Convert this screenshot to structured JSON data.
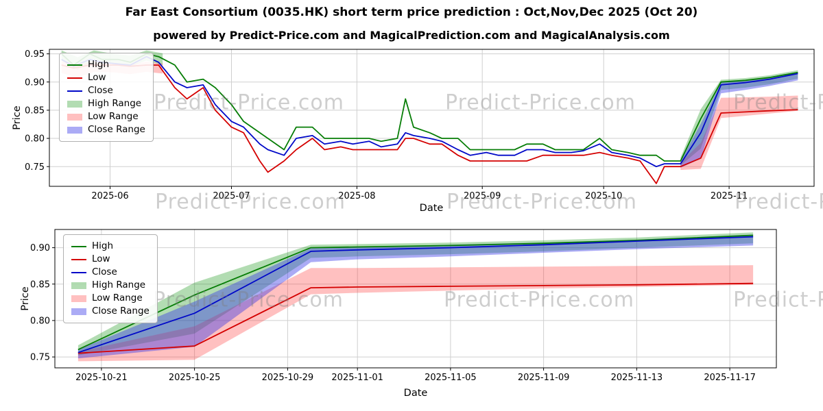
{
  "header": {
    "title": "Far East Consortium (0035.HK) short term price prediction : Oct,Nov,Dec 2025 (Oct 20)",
    "subtitle": "powered by Predict-Price.com and MagicalPrediction.com and MagicalAnalysis.com"
  },
  "watermark": {
    "text": "Predict-Price.com"
  },
  "chart_data": [
    {
      "type": "line",
      "title": "",
      "xlabel": "Date",
      "ylabel": "Price",
      "x_range": [
        "2025-05-17",
        "2025-11-22"
      ],
      "y_range": [
        0.715,
        0.958
      ],
      "y_ticks": [
        0.75,
        0.8,
        0.85,
        0.9,
        0.95
      ],
      "x_ticks": [
        {
          "v": "2025-06-01",
          "label": "2025-06"
        },
        {
          "v": "2025-07-01",
          "label": "2025-07"
        },
        {
          "v": "2025-08-01",
          "label": "2025-08"
        },
        {
          "v": "2025-09-01",
          "label": "2025-09"
        },
        {
          "v": "2025-10-01",
          "label": "2025-10"
        },
        {
          "v": "2025-11-01",
          "label": "2025-11"
        }
      ],
      "grid": true,
      "legend_position": "upper left",
      "series": [
        {
          "name": "High",
          "color": "#067d06",
          "x": [
            "2025-05-20",
            "2025-05-23",
            "2025-05-27",
            "2025-05-30",
            "2025-06-03",
            "2025-06-06",
            "2025-06-10",
            "2025-06-13",
            "2025-06-17",
            "2025-06-20",
            "2025-06-24",
            "2025-06-27",
            "2025-07-01",
            "2025-07-04",
            "2025-07-08",
            "2025-07-10",
            "2025-07-14",
            "2025-07-17",
            "2025-07-21",
            "2025-07-24",
            "2025-07-28",
            "2025-07-31",
            "2025-08-04",
            "2025-08-07",
            "2025-08-11",
            "2025-08-13",
            "2025-08-15",
            "2025-08-19",
            "2025-08-22",
            "2025-08-26",
            "2025-08-29",
            "2025-09-02",
            "2025-09-05",
            "2025-09-09",
            "2025-09-12",
            "2025-09-16",
            "2025-09-19",
            "2025-09-23",
            "2025-09-26",
            "2025-09-30",
            "2025-10-03",
            "2025-10-07",
            "2025-10-10",
            "2025-10-14",
            "2025-10-16",
            "2025-10-20",
            "2025-10-25",
            "2025-10-30",
            "2025-11-05",
            "2025-11-11",
            "2025-11-18"
          ],
          "y": [
            0.95,
            0.93,
            0.95,
            0.94,
            0.94,
            0.935,
            0.95,
            0.945,
            0.93,
            0.9,
            0.905,
            0.89,
            0.86,
            0.83,
            0.81,
            0.8,
            0.78,
            0.82,
            0.82,
            0.8,
            0.8,
            0.8,
            0.8,
            0.795,
            0.8,
            0.87,
            0.82,
            0.81,
            0.8,
            0.8,
            0.78,
            0.78,
            0.78,
            0.78,
            0.79,
            0.79,
            0.78,
            0.78,
            0.78,
            0.8,
            0.78,
            0.775,
            0.77,
            0.77,
            0.76,
            0.76,
            0.835,
            0.9,
            0.903,
            0.908,
            0.917
          ]
        },
        {
          "name": "Low",
          "color": "#d40000",
          "x": [
            "2025-05-20",
            "2025-05-23",
            "2025-05-27",
            "2025-05-30",
            "2025-06-03",
            "2025-06-06",
            "2025-06-10",
            "2025-06-13",
            "2025-06-17",
            "2025-06-20",
            "2025-06-24",
            "2025-06-27",
            "2025-07-01",
            "2025-07-04",
            "2025-07-08",
            "2025-07-10",
            "2025-07-14",
            "2025-07-17",
            "2025-07-21",
            "2025-07-24",
            "2025-07-28",
            "2025-07-31",
            "2025-08-04",
            "2025-08-07",
            "2025-08-11",
            "2025-08-13",
            "2025-08-15",
            "2025-08-19",
            "2025-08-22",
            "2025-08-26",
            "2025-08-29",
            "2025-09-02",
            "2025-09-05",
            "2025-09-09",
            "2025-09-12",
            "2025-09-16",
            "2025-09-19",
            "2025-09-23",
            "2025-09-26",
            "2025-09-30",
            "2025-10-03",
            "2025-10-07",
            "2025-10-10",
            "2025-10-14",
            "2025-10-16",
            "2025-10-20",
            "2025-10-25",
            "2025-10-30",
            "2025-11-05",
            "2025-11-11",
            "2025-11-18"
          ],
          "y": [
            0.93,
            0.925,
            0.93,
            0.93,
            0.93,
            0.928,
            0.93,
            0.93,
            0.89,
            0.87,
            0.89,
            0.85,
            0.82,
            0.81,
            0.76,
            0.74,
            0.76,
            0.78,
            0.8,
            0.78,
            0.785,
            0.78,
            0.78,
            0.78,
            0.78,
            0.8,
            0.8,
            0.79,
            0.79,
            0.77,
            0.76,
            0.76,
            0.76,
            0.76,
            0.76,
            0.77,
            0.77,
            0.77,
            0.77,
            0.775,
            0.77,
            0.765,
            0.76,
            0.72,
            0.75,
            0.75,
            0.765,
            0.845,
            0.847,
            0.849,
            0.851
          ]
        },
        {
          "name": "Close",
          "color": "#0008c8",
          "x": [
            "2025-05-20",
            "2025-05-23",
            "2025-05-27",
            "2025-05-30",
            "2025-06-03",
            "2025-06-06",
            "2025-06-10",
            "2025-06-13",
            "2025-06-17",
            "2025-06-20",
            "2025-06-24",
            "2025-06-27",
            "2025-07-01",
            "2025-07-04",
            "2025-07-08",
            "2025-07-10",
            "2025-07-14",
            "2025-07-17",
            "2025-07-21",
            "2025-07-24",
            "2025-07-28",
            "2025-07-31",
            "2025-08-04",
            "2025-08-07",
            "2025-08-11",
            "2025-08-13",
            "2025-08-15",
            "2025-08-19",
            "2025-08-22",
            "2025-08-26",
            "2025-08-29",
            "2025-09-02",
            "2025-09-05",
            "2025-09-09",
            "2025-09-12",
            "2025-09-16",
            "2025-09-19",
            "2025-09-23",
            "2025-09-26",
            "2025-09-30",
            "2025-10-03",
            "2025-10-07",
            "2025-10-10",
            "2025-10-14",
            "2025-10-16",
            "2025-10-20",
            "2025-10-25",
            "2025-10-30",
            "2025-11-05",
            "2025-11-11",
            "2025-11-18"
          ],
          "y": [
            0.94,
            0.928,
            0.94,
            0.935,
            0.932,
            0.93,
            0.945,
            0.935,
            0.9,
            0.89,
            0.895,
            0.86,
            0.83,
            0.82,
            0.79,
            0.78,
            0.77,
            0.8,
            0.805,
            0.79,
            0.795,
            0.79,
            0.795,
            0.785,
            0.79,
            0.81,
            0.805,
            0.8,
            0.795,
            0.78,
            0.77,
            0.775,
            0.77,
            0.77,
            0.78,
            0.78,
            0.775,
            0.775,
            0.778,
            0.79,
            0.775,
            0.77,
            0.765,
            0.75,
            0.755,
            0.755,
            0.81,
            0.895,
            0.899,
            0.905,
            0.915
          ]
        }
      ],
      "bands": [
        {
          "name": "High Range",
          "fill": "rgba(0,140,0,0.30)",
          "segments": [
            {
              "x": [
                "2025-05-20",
                "2025-05-24",
                "2025-05-28",
                "2025-06-02",
                "2025-06-06",
                "2025-06-10",
                "2025-06-14"
              ],
              "upper": [
                0.956,
                0.944,
                0.956,
                0.95,
                0.947,
                0.956,
                0.951
              ],
              "lower": [
                0.938,
                0.922,
                0.938,
                0.931,
                0.928,
                0.938,
                0.93
              ]
            },
            {
              "x": [
                "2025-10-20",
                "2025-10-25",
                "2025-10-30",
                "2025-11-05",
                "2025-11-11",
                "2025-11-18"
              ],
              "upper": [
                0.766,
                0.852,
                0.904,
                0.907,
                0.912,
                0.921
              ],
              "lower": [
                0.752,
                0.782,
                0.886,
                0.89,
                0.896,
                0.906
              ]
            }
          ]
        },
        {
          "name": "Low Range",
          "fill": "rgba(255,60,60,0.32)",
          "segments": [
            {
              "x": [
                "2025-05-20",
                "2025-05-24",
                "2025-05-28",
                "2025-06-02",
                "2025-06-06",
                "2025-06-10",
                "2025-06-14"
              ],
              "upper": [
                0.937,
                0.929,
                0.937,
                0.934,
                0.931,
                0.936,
                0.933
              ],
              "lower": [
                0.916,
                0.908,
                0.918,
                0.917,
                0.914,
                0.918,
                0.915
              ]
            },
            {
              "x": [
                "2025-10-20",
                "2025-10-25",
                "2025-10-30",
                "2025-11-05",
                "2025-11-11",
                "2025-11-18"
              ],
              "upper": [
                0.757,
                0.792,
                0.872,
                0.873,
                0.874,
                0.876
              ],
              "lower": [
                0.744,
                0.746,
                0.836,
                0.84,
                0.844,
                0.849
              ]
            }
          ]
        },
        {
          "name": "Close Range",
          "fill": "rgba(55,55,230,0.42)",
          "segments": [
            {
              "x": [
                "2025-10-20",
                "2025-10-25",
                "2025-10-30",
                "2025-11-05",
                "2025-11-11",
                "2025-11-18"
              ],
              "upper": [
                0.76,
                0.826,
                0.899,
                0.903,
                0.909,
                0.918
              ],
              "lower": [
                0.748,
                0.764,
                0.88,
                0.886,
                0.893,
                0.903
              ]
            }
          ]
        }
      ]
    },
    {
      "type": "line",
      "title": "",
      "xlabel": "Date",
      "ylabel": "Price",
      "x_range": [
        "2025-10-19",
        "2025-11-19"
      ],
      "y_range": [
        0.735,
        0.925
      ],
      "y_ticks": [
        0.75,
        0.8,
        0.85,
        0.9
      ],
      "x_ticks": [
        {
          "v": "2025-10-21",
          "label": "2025-10-21"
        },
        {
          "v": "2025-10-25",
          "label": "2025-10-25"
        },
        {
          "v": "2025-10-29",
          "label": "2025-10-29"
        },
        {
          "v": "2025-11-01",
          "label": "2025-11-01"
        },
        {
          "v": "2025-11-05",
          "label": "2025-11-05"
        },
        {
          "v": "2025-11-09",
          "label": "2025-11-09"
        },
        {
          "v": "2025-11-13",
          "label": "2025-11-13"
        },
        {
          "v": "2025-11-17",
          "label": "2025-11-17"
        }
      ],
      "grid": true,
      "legend_position": "upper left",
      "series": [
        {
          "name": "High",
          "color": "#067d06",
          "x": [
            "2025-10-20",
            "2025-10-25",
            "2025-10-30",
            "2025-11-01",
            "2025-11-05",
            "2025-11-09",
            "2025-11-13",
            "2025-11-18"
          ],
          "y": [
            0.76,
            0.835,
            0.9,
            0.901,
            0.903,
            0.906,
            0.91,
            0.917
          ]
        },
        {
          "name": "Low",
          "color": "#d40000",
          "x": [
            "2025-10-20",
            "2025-10-25",
            "2025-10-30",
            "2025-11-01",
            "2025-11-05",
            "2025-11-09",
            "2025-11-13",
            "2025-11-18"
          ],
          "y": [
            0.755,
            0.765,
            0.845,
            0.846,
            0.847,
            0.848,
            0.849,
            0.851
          ]
        },
        {
          "name": "Close",
          "color": "#0008c8",
          "x": [
            "2025-10-20",
            "2025-10-25",
            "2025-10-30",
            "2025-11-01",
            "2025-11-05",
            "2025-11-09",
            "2025-11-13",
            "2025-11-18"
          ],
          "y": [
            0.756,
            0.81,
            0.895,
            0.897,
            0.9,
            0.904,
            0.909,
            0.915
          ]
        }
      ],
      "bands": [
        {
          "name": "High Range",
          "fill": "rgba(0,140,0,0.30)",
          "segments": [
            {
              "x": [
                "2025-10-20",
                "2025-10-25",
                "2025-10-30",
                "2025-11-01",
                "2025-11-05",
                "2025-11-09",
                "2025-11-13",
                "2025-11-18"
              ],
              "upper": [
                0.766,
                0.852,
                0.904,
                0.905,
                0.907,
                0.91,
                0.914,
                0.921
              ],
              "lower": [
                0.752,
                0.782,
                0.886,
                0.888,
                0.891,
                0.895,
                0.9,
                0.906
              ]
            }
          ]
        },
        {
          "name": "Low Range",
          "fill": "rgba(255,60,60,0.32)",
          "segments": [
            {
              "x": [
                "2025-10-20",
                "2025-10-25",
                "2025-10-30",
                "2025-11-01",
                "2025-11-05",
                "2025-11-09",
                "2025-11-13",
                "2025-11-18"
              ],
              "upper": [
                0.757,
                0.792,
                0.872,
                0.872,
                0.873,
                0.874,
                0.875,
                0.876
              ],
              "lower": [
                0.744,
                0.746,
                0.836,
                0.838,
                0.841,
                0.844,
                0.846,
                0.849
              ]
            }
          ]
        },
        {
          "name": "Close Range",
          "fill": "rgba(55,55,230,0.42)",
          "segments": [
            {
              "x": [
                "2025-10-20",
                "2025-10-25",
                "2025-10-30",
                "2025-11-01",
                "2025-11-05",
                "2025-11-09",
                "2025-11-13",
                "2025-11-18"
              ],
              "upper": [
                0.76,
                0.826,
                0.899,
                0.901,
                0.904,
                0.907,
                0.911,
                0.918
              ],
              "lower": [
                0.748,
                0.764,
                0.88,
                0.884,
                0.888,
                0.893,
                0.898,
                0.903
              ]
            }
          ]
        }
      ]
    }
  ]
}
